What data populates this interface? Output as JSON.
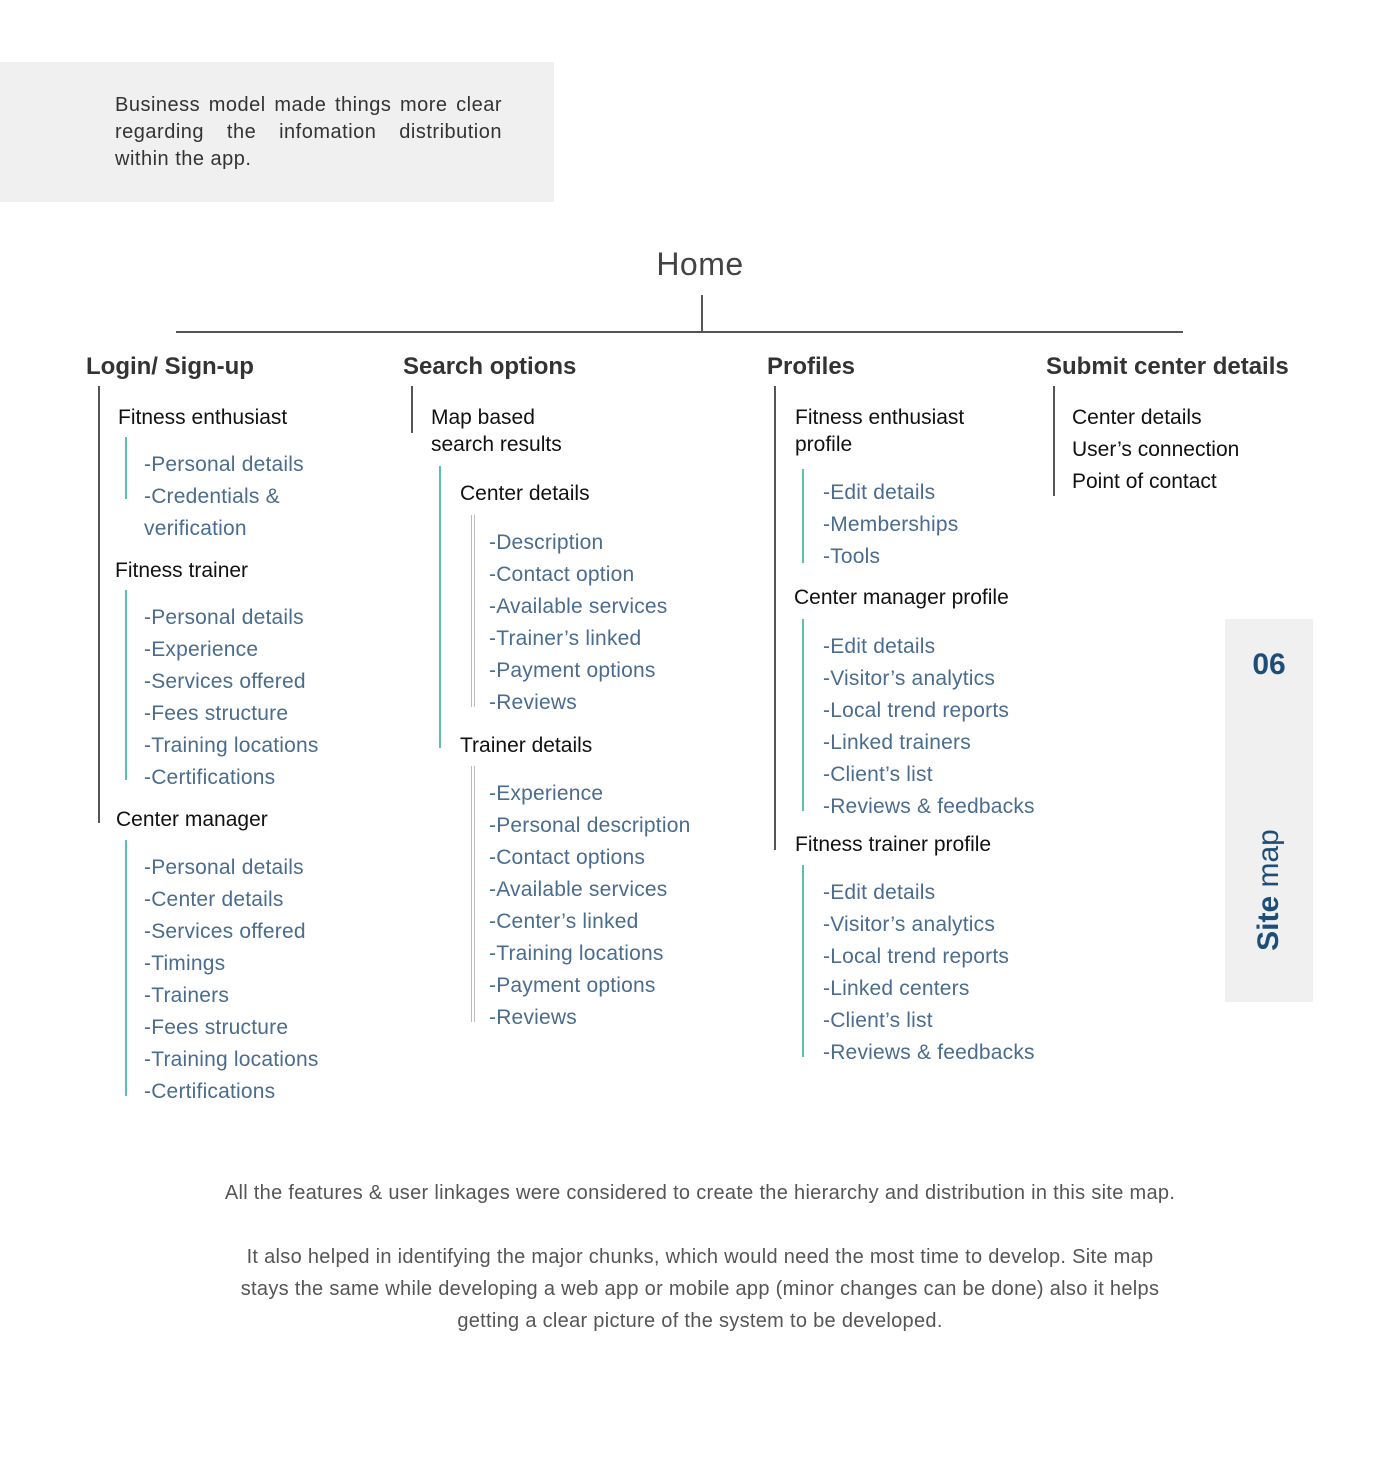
{
  "intro": "Business model made things more clear regarding the infomation distribution within the app.",
  "home": "Home",
  "columns": {
    "login": {
      "title": "Login/ Sign-up",
      "groups": [
        {
          "name": "Fitness enthusiast",
          "items": [
            "-Personal details",
            "-Credentials &",
            "verification"
          ]
        },
        {
          "name": "Fitness trainer",
          "items": [
            "-Personal details",
            "-Experience",
            "-Services offered",
            "-Fees structure",
            "-Training locations",
            "-Certifications"
          ]
        },
        {
          "name": "Center manager",
          "items": [
            "-Personal details",
            "-Center details",
            "-Services offered",
            "-Timings",
            "-Trainers",
            "-Fees structure",
            "-Training locations",
            "-Certifications"
          ]
        }
      ]
    },
    "search": {
      "title": "Search options",
      "sub_line1": "Map based",
      "sub_line2": "search results",
      "groups": [
        {
          "name": "Center details",
          "items": [
            "-Description",
            "-Contact option",
            "-Available services",
            "-Trainer’s linked",
            "-Payment options",
            "-Reviews"
          ]
        },
        {
          "name": "Trainer details",
          "items": [
            "-Experience",
            "-Personal description",
            "-Contact options",
            "-Available services",
            "-Center’s linked",
            "-Training locations",
            "-Payment options",
            "-Reviews"
          ]
        }
      ]
    },
    "profiles": {
      "title": "Profiles",
      "groups": [
        {
          "name_line1": "Fitness enthusiast",
          "name_line2": "profile",
          "items": [
            "-Edit details",
            "-Memberships",
            "-Tools"
          ]
        },
        {
          "name": "Center manager profile",
          "items": [
            "-Edit details",
            "-Visitor’s analytics",
            "-Local trend reports",
            "-Linked trainers",
            "-Client’s list",
            "-Reviews & feedbacks"
          ]
        },
        {
          "name": "Fitness trainer profile",
          "items": [
            "-Edit details",
            "-Visitor’s analytics",
            "-Local trend reports",
            "-Linked centers",
            "-Client’s list",
            "-Reviews & feedbacks"
          ]
        }
      ]
    },
    "submit": {
      "title": "Submit center details",
      "items": [
        "Center details",
        "User’s connection",
        "Point of contact"
      ]
    }
  },
  "side_tab": {
    "number": "06",
    "label_bold": "Site",
    "label_rest": " map"
  },
  "footer": {
    "p1": "All the features & user linkages were considered to create the hierarchy and distribution in this site map.",
    "p2_line1": "It also helped in identifying the major chunks, which would need the most time to develop. Site map",
    "p2_line2": "stays the same while developing a web app or mobile app (minor changes can be done) also it helps",
    "p2_line3": "getting a clear picture of the system to be developed."
  },
  "colors": {
    "accent_line": "#5bbfb0",
    "leaf_text": "#4a6c8e",
    "tab_text": "#1d4e79"
  }
}
